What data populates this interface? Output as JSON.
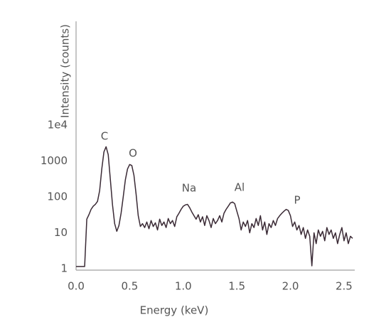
{
  "chart_data": {
    "type": "line",
    "xlabel": "Energy (keV)",
    "ylabel": "Intensity (counts)",
    "log_y": true,
    "grid": false,
    "color": "#3a2a35",
    "annotations": [
      "C",
      "O",
      "Na",
      "Al",
      "P"
    ],
    "xlim": [
      0,
      2.6
    ],
    "xticks": [
      {
        "value": 0,
        "label": "0.0"
      },
      0.5,
      {
        "value": 1,
        "label": "1.0"
      },
      1.5,
      {
        "value": 2,
        "label": "2.0"
      },
      2.5
    ],
    "ylim": [
      1,
      10000000
    ],
    "yticks": [
      1,
      10,
      100,
      1000,
      {
        "value": 10000,
        "label": "1e4"
      }
    ],
    "x": [
      0,
      0.02,
      0.04,
      0.06,
      0.08,
      0.1,
      0.12,
      0.14,
      0.16,
      0.18,
      0.2,
      0.22,
      0.24,
      0.26,
      0.28,
      0.3,
      0.32,
      0.34,
      0.36,
      0.38,
      0.4,
      0.42,
      0.44,
      0.46,
      0.48,
      0.5,
      0.52,
      0.54,
      0.56,
      0.58,
      0.6,
      0.62,
      0.64,
      0.66,
      0.68,
      0.7,
      0.72,
      0.74,
      0.76,
      0.78,
      0.8,
      0.82,
      0.84,
      0.86,
      0.88,
      0.9,
      0.92,
      0.94,
      0.96,
      0.98,
      1,
      1.02,
      1.04,
      1.06,
      1.08,
      1.1,
      1.12,
      1.14,
      1.16,
      1.18,
      1.2,
      1.22,
      1.24,
      1.26,
      1.28,
      1.3,
      1.32,
      1.34,
      1.36,
      1.38,
      1.4,
      1.42,
      1.44,
      1.46,
      1.48,
      1.5,
      1.52,
      1.54,
      1.56,
      1.58,
      1.6,
      1.62,
      1.64,
      1.66,
      1.68,
      1.7,
      1.72,
      1.74,
      1.76,
      1.78,
      1.8,
      1.82,
      1.84,
      1.86,
      1.88,
      1.9,
      1.92,
      1.94,
      1.96,
      1.98,
      2,
      2.02,
      2.04,
      2.06,
      2.08,
      2.1,
      2.12,
      2.14,
      2.16,
      2.18,
      2.2,
      2.22,
      2.24,
      2.26,
      2.28,
      2.3,
      2.32,
      2.34,
      2.36,
      2.38,
      2.4,
      2.42,
      2.44,
      2.46,
      2.48,
      2.5,
      2.52,
      2.54,
      2.56,
      2.58
    ],
    "values": [
      1.15,
      1.15,
      1.15,
      1.15,
      1.15,
      24,
      32,
      45,
      55,
      62,
      75,
      150,
      600,
      1800,
      2500,
      1500,
      300,
      60,
      18,
      11,
      16,
      35,
      100,
      300,
      600,
      800,
      750,
      400,
      120,
      30,
      15,
      18,
      14,
      20,
      13,
      22,
      15,
      19,
      12,
      24,
      16,
      20,
      14,
      25,
      18,
      22,
      15,
      28,
      35,
      45,
      55,
      60,
      62,
      50,
      38,
      30,
      24,
      32,
      20,
      28,
      16,
      30,
      22,
      14,
      25,
      18,
      22,
      30,
      20,
      35,
      45,
      55,
      68,
      72,
      65,
      40,
      25,
      12,
      20,
      15,
      22,
      10,
      18,
      14,
      25,
      16,
      30,
      12,
      20,
      9,
      18,
      14,
      22,
      16,
      25,
      30,
      35,
      40,
      45,
      42,
      30,
      15,
      20,
      12,
      16,
      9,
      14,
      7,
      12,
      8,
      1.2,
      10,
      5,
      12,
      8,
      11,
      6,
      14,
      9,
      12,
      7,
      10,
      5,
      9,
      14,
      6,
      10,
      5,
      8,
      7
    ]
  }
}
